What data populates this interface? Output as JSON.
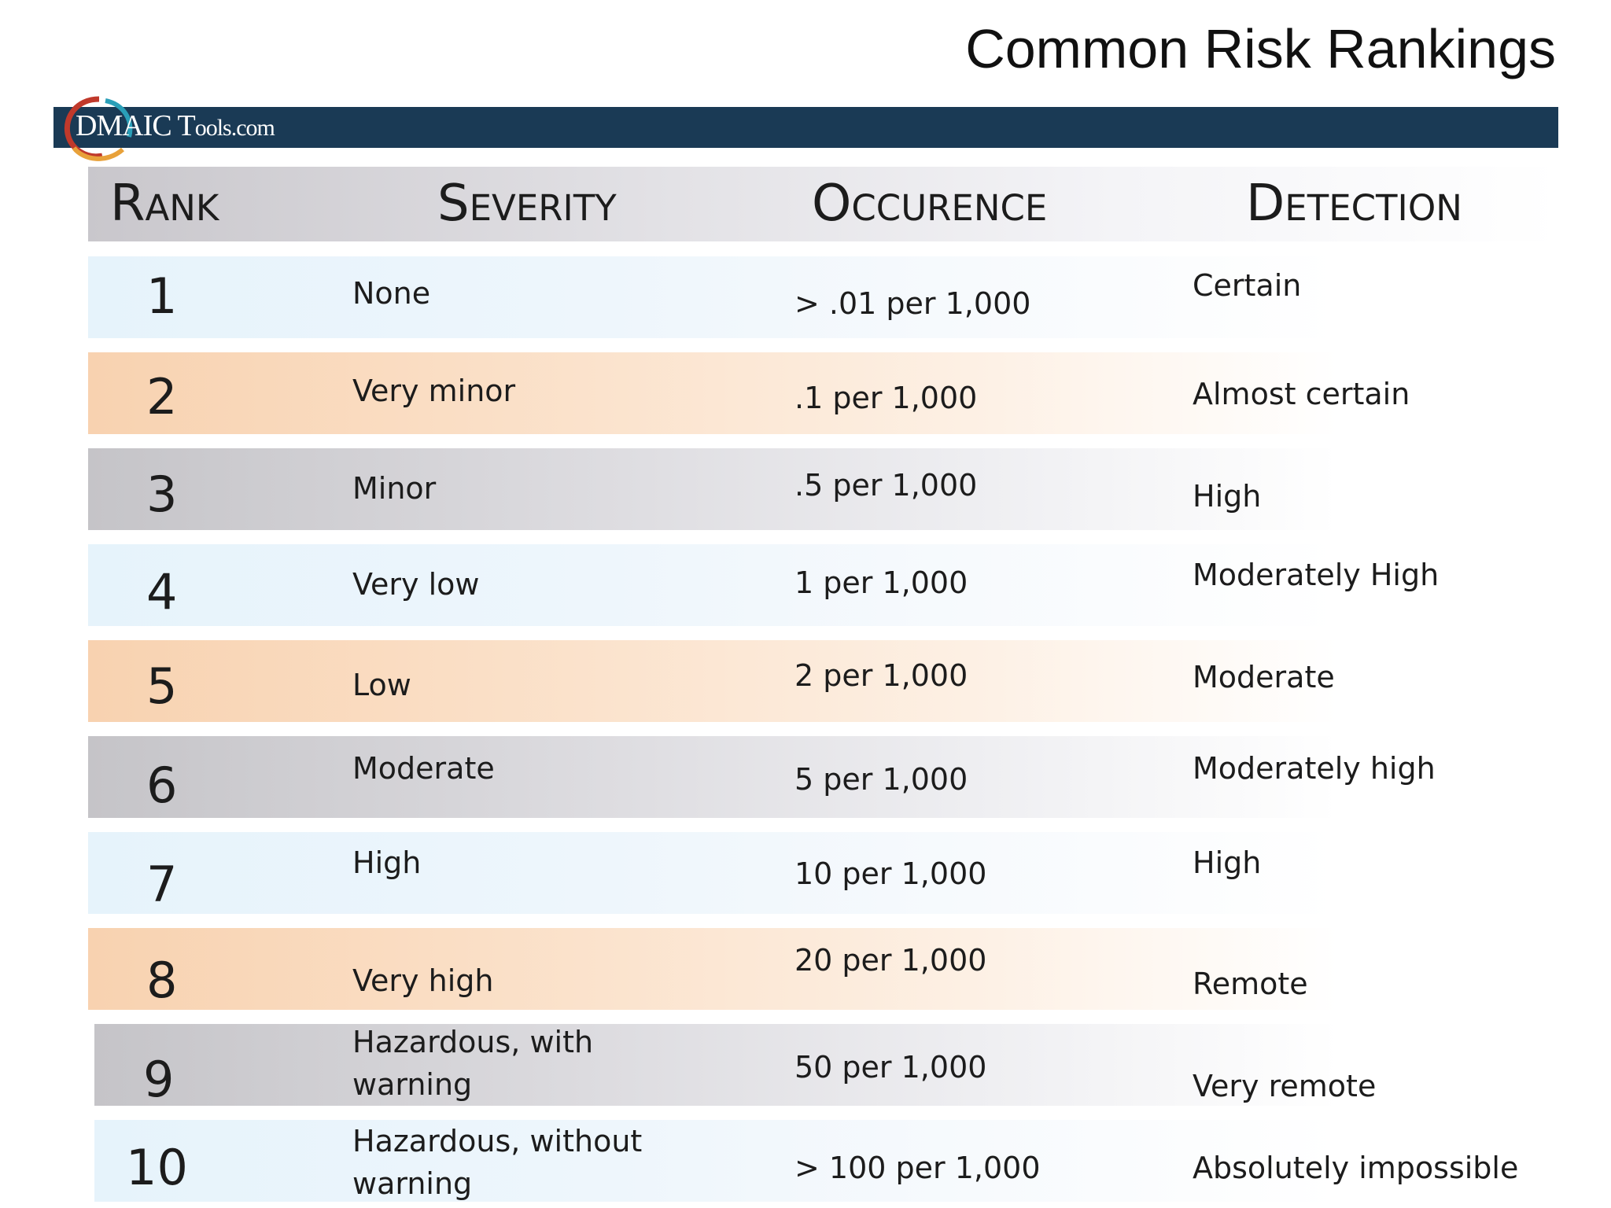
{
  "title": "Common Risk Rankings",
  "logo": {
    "text_main": "DMAIC T",
    "text_small": "ools.com"
  },
  "colors": {
    "banner": "#1a3a55",
    "blue_row": "#e6f3fb",
    "orange_row": "#f8d2b0",
    "gray_row": "#c5c4c8"
  },
  "headers": {
    "rank": "Rank",
    "severity": "Severity",
    "occurence": "Occurence",
    "detection": "Detection"
  },
  "rows": [
    {
      "rank": "1",
      "severity": "None",
      "severity2": "",
      "occurence": "> .01 per 1,000",
      "detection": "Certain"
    },
    {
      "rank": "2",
      "severity": "Very minor",
      "severity2": "",
      "occurence": ".1 per 1,000",
      "detection": "Almost certain"
    },
    {
      "rank": "3",
      "severity": "Minor",
      "severity2": "",
      "occurence": ".5 per 1,000",
      "detection": "High"
    },
    {
      "rank": "4",
      "severity": "Very low",
      "severity2": "",
      "occurence": "1 per 1,000",
      "detection": "Moderately High"
    },
    {
      "rank": "5",
      "severity": "Low",
      "severity2": "",
      "occurence": "2 per 1,000",
      "detection": "Moderate"
    },
    {
      "rank": "6",
      "severity": "Moderate",
      "severity2": "",
      "occurence": "5 per 1,000",
      "detection": "Moderately high"
    },
    {
      "rank": "7",
      "severity": "High",
      "severity2": "",
      "occurence": "10 per 1,000",
      "detection": "High"
    },
    {
      "rank": "8",
      "severity": "Very high",
      "severity2": "",
      "occurence": "20 per 1,000",
      "detection": "Remote"
    },
    {
      "rank": "9",
      "severity": "Hazardous, with",
      "severity2": "warning",
      "occurence": "50 per 1,000",
      "detection": "Very remote"
    },
    {
      "rank": "10",
      "severity": "Hazardous, without",
      "severity2": "warning",
      "occurence": "> 100 per 1,000",
      "detection": "Absolutely impossible"
    }
  ]
}
